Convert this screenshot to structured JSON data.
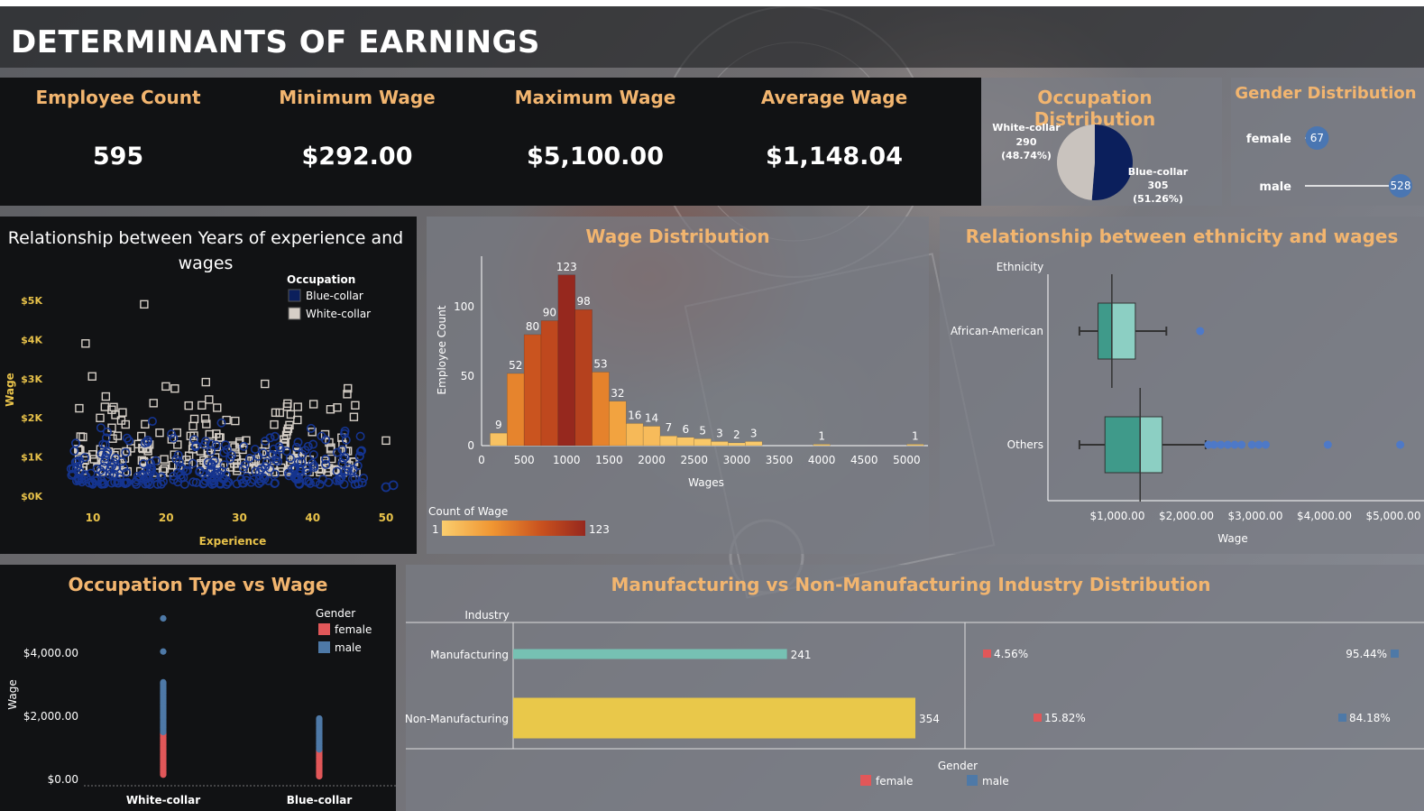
{
  "dashboard_title": "DETERMINANTS OF EARNINGS",
  "kpis": [
    {
      "label": "Employee Count",
      "value": "595"
    },
    {
      "label": "Minimum Wage",
      "value": "$292.00"
    },
    {
      "label": "Maximum Wage",
      "value": "$5,100.00"
    },
    {
      "label": "Average Wage",
      "value": "$1,148.04"
    }
  ],
  "occupation_distribution": {
    "title": "Occupation Distribution",
    "chart_data": {
      "type": "pie",
      "slices": [
        {
          "name": "White-collar",
          "value": 290,
          "pct": "(48.74%)",
          "color": "#c9c3be"
        },
        {
          "name": "Blue-collar",
          "value": 305,
          "pct": "(51.26%)",
          "color": "#0b1f5c"
        }
      ]
    }
  },
  "gender_distribution": {
    "title": "Gender Distribution",
    "chart_data": {
      "type": "bar",
      "categories": [
        "female",
        "male"
      ],
      "values": [
        67,
        528
      ],
      "color": "#4a76b2"
    }
  },
  "experience_scatter": {
    "title": "Relationship between Years of experience and wages",
    "legend_title": "Occupation",
    "chart_data": {
      "type": "scatter",
      "xlabel": "Experience",
      "ylabel": "Wage",
      "xlim": [
        5,
        52
      ],
      "ylim": [
        0,
        5400
      ],
      "x_ticks": [
        "10",
        "20",
        "30",
        "40",
        "50"
      ],
      "y_ticks": [
        "$0K",
        "$1K",
        "$2K",
        "$3K",
        "$4K",
        "$5K"
      ],
      "series": [
        {
          "name": "Blue-collar",
          "color": "#0b1f5c",
          "marker": "circle"
        },
        {
          "name": "White-collar",
          "color": "#d6cfc7",
          "marker": "square"
        }
      ],
      "notable_points": [
        {
          "series": "White-collar",
          "x": 17,
          "y": 4900
        },
        {
          "series": "White-collar",
          "x": 9,
          "y": 3900
        },
        {
          "series": "White-collar",
          "x": 50,
          "y": 1420
        },
        {
          "series": "Blue-collar",
          "x": 50,
          "y": 230
        },
        {
          "series": "Blue-collar",
          "x": 51,
          "y": 280
        }
      ]
    }
  },
  "wage_distribution": {
    "title": "Wage Distribution",
    "legend_title": "Count of Wage",
    "legend_min": "1",
    "legend_max": "123",
    "chart_data": {
      "type": "bar",
      "xlabel": "Wages",
      "ylabel": "Employee Count",
      "x_ticks": [
        "0",
        "500",
        "1000",
        "1500",
        "2000",
        "2500",
        "3000",
        "3500",
        "4000",
        "4500",
        "5000"
      ],
      "y_ticks": [
        "0",
        "50",
        "100"
      ],
      "xlim": [
        0,
        5250
      ],
      "ylim": [
        0,
        130
      ],
      "bin_width": 100,
      "bins": [
        {
          "x": 200,
          "count": 9
        },
        {
          "x": 400,
          "count": 52
        },
        {
          "x": 600,
          "count": 80
        },
        {
          "x": 800,
          "count": 90
        },
        {
          "x": 1000,
          "count": 123
        },
        {
          "x": 1200,
          "count": 98
        },
        {
          "x": 1400,
          "count": 53
        },
        {
          "x": 1600,
          "count": 32
        },
        {
          "x": 1800,
          "count": 16
        },
        {
          "x": 2000,
          "count": 14
        },
        {
          "x": 2200,
          "count": 7
        },
        {
          "x": 2400,
          "count": 6
        },
        {
          "x": 2600,
          "count": 5
        },
        {
          "x": 2800,
          "count": 3
        },
        {
          "x": 3000,
          "count": 2
        },
        {
          "x": 3200,
          "count": 3
        },
        {
          "x": 4000,
          "count": 1
        },
        {
          "x": 5100,
          "count": 1
        }
      ]
    }
  },
  "ethnicity_boxplot": {
    "title": "Relationship between ethnicity and wages",
    "chart_data": {
      "type": "box",
      "category_label": "Ethnicity",
      "xlabel": "Wage",
      "xlim": [
        300,
        5300
      ],
      "x_ticks": [
        "$1,000.00",
        "$2,000.00",
        "$3,000.00",
        "$4,000.00",
        "$5,000.00"
      ],
      "x_tick_values": [
        1000,
        2000,
        3000,
        4000,
        5000
      ],
      "groups": [
        {
          "name": "African-American",
          "whisker_low": 450,
          "q1": 720,
          "median": 920,
          "q3": 1260,
          "whisker_high": 1710,
          "outliers": [
            2200
          ]
        },
        {
          "name": "Others",
          "whisker_low": 450,
          "q1": 820,
          "median": 1330,
          "q3": 1650,
          "whisker_high": 2280,
          "outliers": [
            2320,
            2400,
            2500,
            2600,
            2700,
            2800,
            2950,
            3050,
            3150,
            4050,
            5100
          ]
        }
      ]
    }
  },
  "occupation_wage": {
    "title": "Occupation Type vs Wage",
    "legend_title": "Gender",
    "chart_data": {
      "type": "scatter",
      "ylabel": "Wage",
      "categories": [
        "White-collar",
        "Blue-collar"
      ],
      "y_ticks": [
        "$0.00",
        "$2,000.00",
        "$4,000.00"
      ],
      "y_tick_values": [
        0,
        2000,
        4000
      ],
      "ylim": [
        -100,
        5000
      ],
      "series": [
        {
          "name": "female",
          "color": "#e15759",
          "ranges": [
            {
              "category": "White-collar",
              "min": 150,
              "max": 1500
            },
            {
              "category": "Blue-collar",
              "min": 100,
              "max": 950
            }
          ]
        },
        {
          "name": "male",
          "color": "#4e79a7",
          "ranges": [
            {
              "category": "White-collar",
              "min": 1500,
              "max": 3100
            },
            {
              "category": "Blue-collar",
              "min": 950,
              "max": 1950
            }
          ],
          "extra_points": [
            {
              "category": "White-collar",
              "y": 4050
            },
            {
              "category": "White-collar",
              "y": 5100
            }
          ]
        }
      ]
    }
  },
  "industry": {
    "title": "Manufacturing vs Non-Manufacturing Industry Distribution",
    "category_label": "Industry",
    "legend_title": "Gender",
    "chart_data": {
      "type": "bar",
      "categories": [
        "Manufacturing",
        "Non-Manufacturing"
      ],
      "values": [
        241,
        354
      ],
      "colors": [
        "#76c1b3",
        "#e9c84a"
      ],
      "xlim": [
        0,
        380
      ],
      "gender_split": [
        {
          "category": "Manufacturing",
          "female": "4.56%",
          "male": "95.44%"
        },
        {
          "category": "Non-Manufacturing",
          "female": "15.82%",
          "male": "84.18%"
        }
      ],
      "legend": [
        {
          "name": "female",
          "color": "#e15759"
        },
        {
          "name": "male",
          "color": "#4e79a7"
        }
      ]
    }
  }
}
